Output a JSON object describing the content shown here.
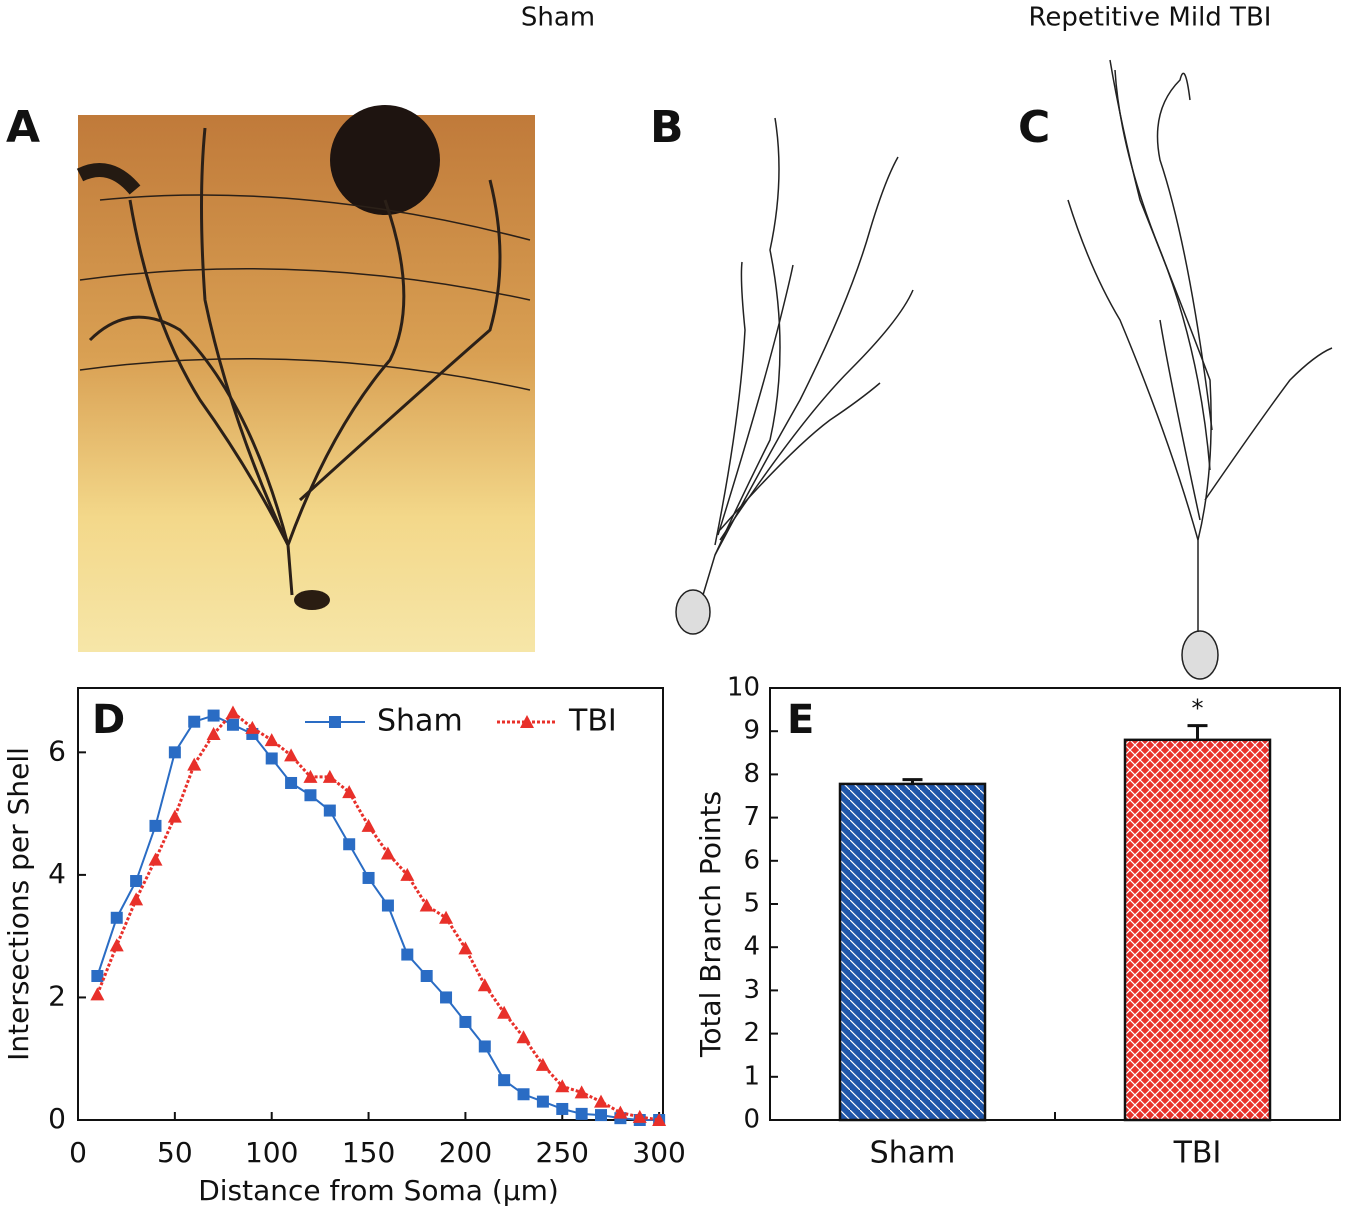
{
  "header": {
    "left": "Sham",
    "right": "Repetitive Mild TBI"
  },
  "panels": {
    "a": "A",
    "b": "B",
    "c": "C"
  },
  "chart_data": [
    {
      "type": "line",
      "panel": "D",
      "xlabel": "Distance from Soma (μm)",
      "ylabel": "Intersections per Shell",
      "x": [
        10,
        20,
        30,
        40,
        50,
        60,
        70,
        80,
        90,
        100,
        110,
        120,
        130,
        140,
        150,
        160,
        170,
        180,
        190,
        200,
        210,
        220,
        230,
        240,
        250,
        260,
        270,
        280,
        290,
        300
      ],
      "series": [
        {
          "name": "Sham",
          "color": "#2a6cc4",
          "style": "solid",
          "marker": "square",
          "values": [
            2.35,
            3.3,
            3.9,
            4.8,
            6.0,
            6.5,
            6.6,
            6.45,
            6.3,
            5.9,
            5.5,
            5.3,
            5.05,
            4.5,
            3.95,
            3.5,
            2.7,
            2.35,
            2.0,
            1.6,
            1.2,
            0.65,
            0.42,
            0.3,
            0.18,
            0.1,
            0.08,
            0.03,
            0,
            0
          ]
        },
        {
          "name": "TBI",
          "color": "#e8302a",
          "style": "dotted",
          "marker": "triangle",
          "values": [
            2.05,
            2.85,
            3.6,
            4.25,
            4.95,
            5.8,
            6.3,
            6.65,
            6.4,
            6.2,
            5.95,
            5.6,
            5.6,
            5.35,
            4.8,
            4.35,
            4.0,
            3.5,
            3.3,
            2.8,
            2.2,
            1.75,
            1.35,
            0.9,
            0.55,
            0.45,
            0.3,
            0.12,
            0.05,
            0
          ]
        }
      ],
      "xlim": [
        0,
        302
      ],
      "xticks": [
        0,
        50,
        100,
        150,
        200,
        250,
        300
      ],
      "ylim": [
        0,
        7.05
      ],
      "yticks": [
        0,
        2,
        4,
        6
      ],
      "legend": "top-right"
    },
    {
      "type": "bar",
      "panel": "E",
      "ylabel": "Total Branch Points",
      "categories": [
        "Sham",
        "TBI"
      ],
      "values": [
        7.78,
        8.8
      ],
      "errors": [
        0.1,
        0.33
      ],
      "colors": [
        "#1f55a8",
        "#e8302a"
      ],
      "patterns": [
        "diagonal",
        "crosshatch"
      ],
      "annotations": [
        null,
        "*"
      ],
      "ylim": [
        0,
        10
      ],
      "yticks": [
        0,
        1,
        2,
        3,
        4,
        5,
        6,
        7,
        8,
        9,
        10
      ]
    }
  ]
}
